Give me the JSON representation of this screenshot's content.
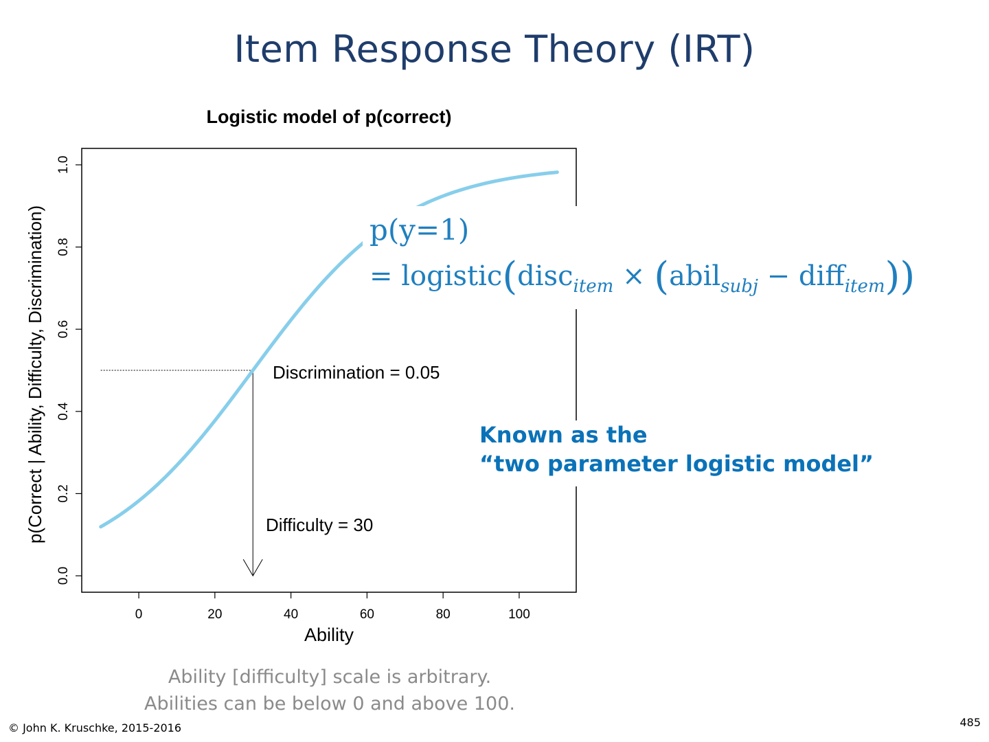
{
  "slide": {
    "title": "Item Response Theory (IRT)",
    "formula_line1": "p(y=1)",
    "formula_line2_prefix": "= logistic",
    "known_as_line1": "Known as the",
    "known_as_line2": "“two parameter logistic model”",
    "note_line1": "Ability [difficulty] scale is arbitrary.",
    "note_line2": "Abilities can be below 0 and above 100.",
    "copyright": "© John K. Kruschke, 2015-2016",
    "page_number": "485"
  },
  "chart_data": {
    "type": "line",
    "title": "Logistic model of p(correct)",
    "xlabel": "Ability",
    "ylabel": "p(Correct | Ability, Difficulty, Discrimination)",
    "xlim": [
      -15,
      115
    ],
    "ylim": [
      -0.04,
      1.04
    ],
    "xticks": [
      0,
      20,
      40,
      60,
      80,
      100
    ],
    "yticks": [
      0.0,
      0.2,
      0.4,
      0.6,
      0.8,
      1.0
    ],
    "ytick_labels": [
      "0.0",
      "0.2",
      "0.4",
      "0.6",
      "0.8",
      "1.0"
    ],
    "series": [
      {
        "color": "#87ceeb",
        "model": "logistic",
        "discrimination": 0.05,
        "difficulty": 30,
        "x_range": [
          -10,
          110
        ]
      }
    ],
    "annotations": {
      "discrimination_label": "Discrimination = 0.05",
      "difficulty_label": "Difficulty = 30",
      "reference_y": 0.5,
      "reference_x": 30
    },
    "grid": false
  }
}
